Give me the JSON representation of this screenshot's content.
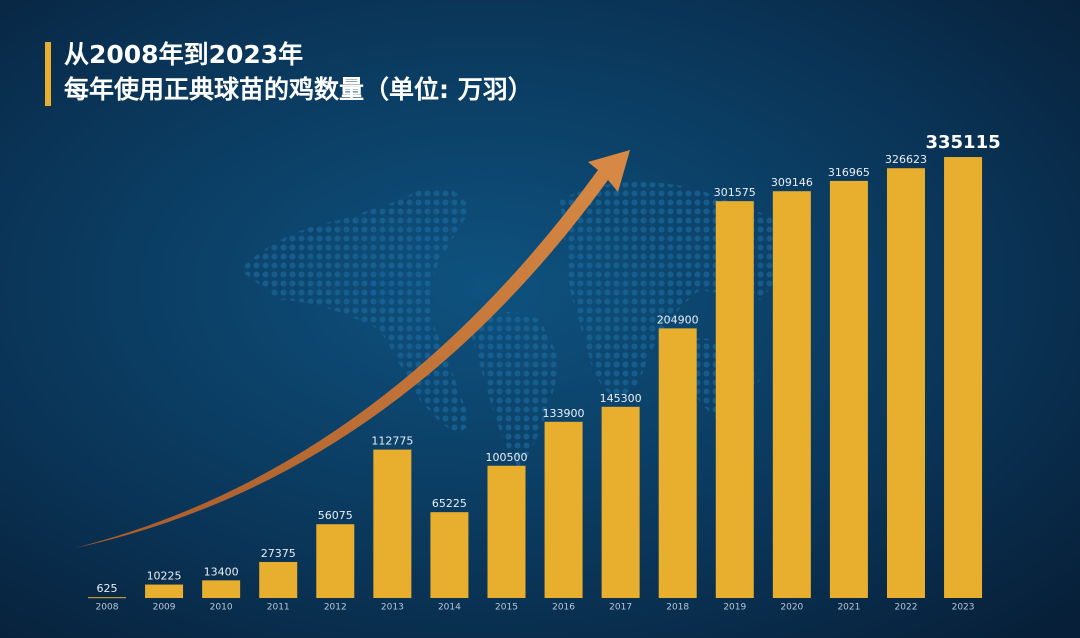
{
  "chart_data": {
    "type": "bar",
    "title": "从2008年到2023年",
    "subtitle": "每年使用正典球苗的鸡数量（单位: 万羽）",
    "categories": [
      "2008",
      "2009",
      "2010",
      "2011",
      "2012",
      "2013",
      "2014",
      "2015",
      "2016",
      "2017",
      "2018",
      "2019",
      "2020",
      "2021",
      "2022",
      "2023"
    ],
    "values": [
      625,
      10225,
      13400,
      27375,
      56075,
      112775,
      65225,
      100500,
      133900,
      145300,
      204900,
      301575,
      309146,
      316965,
      326623,
      335115
    ],
    "color": "#e8ae2e",
    "ylim": [
      0,
      340000
    ]
  }
}
